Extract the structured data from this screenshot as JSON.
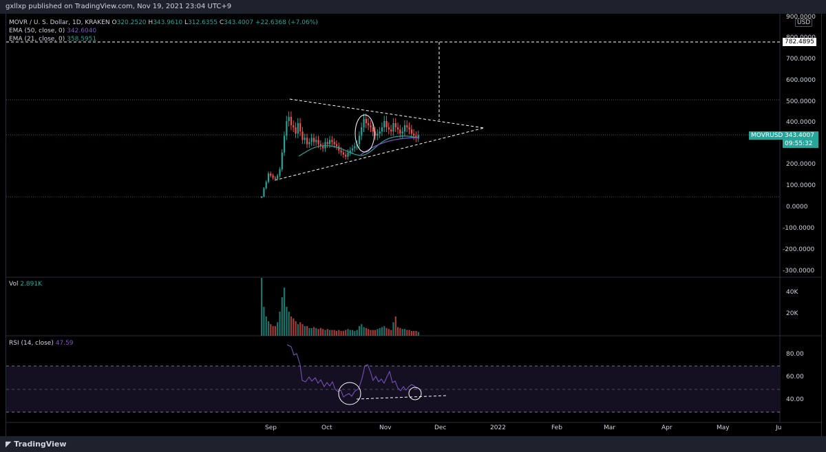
{
  "header": {
    "published": "gxllxp published on TradingView.com, Nov 19, 2021 23:04 UTC+9"
  },
  "legend": {
    "symbol": "MOVR / U. S. Dollar, 1D, KRAKEN",
    "ohlc_prefix_o": "O",
    "open": "320.2520",
    "ohlc_prefix_h": "H",
    "high": "343.9610",
    "ohlc_prefix_l": "L",
    "low": "312.6355",
    "ohlc_prefix_c": "C",
    "close": "343.4007",
    "change": "+22.6368 (+7.06%)",
    "ema50_label": "EMA (50, close, 0)",
    "ema50_value": "342.6040",
    "ema21_label": "EMA (21, close, 0)",
    "ema21_value": "358.5951",
    "vol_label": "Vol",
    "vol_value": "2.891K",
    "rsi_label": "RSI (14, close)",
    "rsi_value": "47.59"
  },
  "price_axis": {
    "currency": "USD",
    "ticks": [
      "900.0000",
      "800.0000",
      "700.0000",
      "600.0000",
      "500.0000",
      "400.0000",
      "300.0000",
      "200.0000",
      "100.0000",
      "0.0000",
      "-100.0000",
      "-200.0000",
      "-300.0000"
    ],
    "target_label": "782.4895",
    "symbol_tag": "MOVRUSD",
    "price_tag": "343.4007",
    "countdown": "09:55:32"
  },
  "vol_axis": {
    "ticks": [
      "40K",
      "20K"
    ]
  },
  "rsi_axis": {
    "ticks": [
      "80.00",
      "60.00",
      "40.00"
    ]
  },
  "time_axis": {
    "labels": [
      "Sep",
      "Oct",
      "Nov",
      "Dec",
      "2022",
      "Feb",
      "Mar",
      "Apr",
      "May",
      "Ju"
    ]
  },
  "footer": {
    "brand": "TradingView"
  },
  "colors": {
    "up": "#26a69a",
    "down": "#ef5350",
    "ema50": "#7e57c2",
    "ema21": "#26a69a",
    "background": "#000000",
    "panel": "#1e222d"
  }
}
